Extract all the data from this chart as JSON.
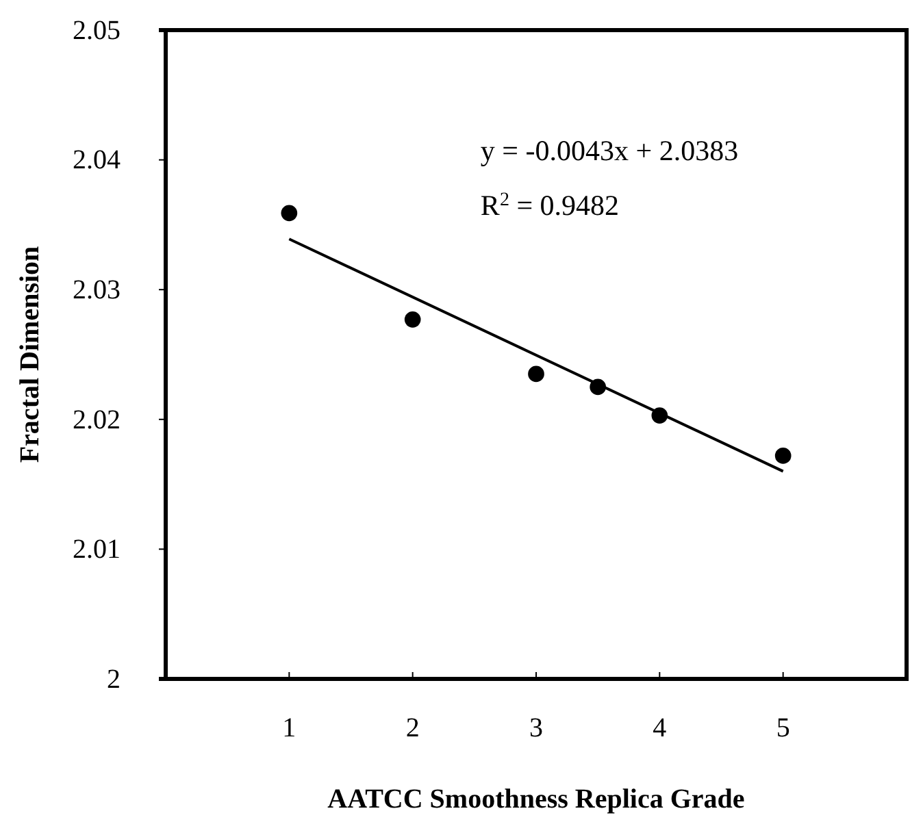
{
  "chart_data": {
    "type": "scatter",
    "xlabel": "AATCC Smoothness Replica Grade",
    "ylabel": "Fractal Dimension",
    "xlim": [
      0,
      6
    ],
    "xticks": [
      1,
      2,
      3,
      4,
      5
    ],
    "ylim": [
      2,
      2.05
    ],
    "yticks": [
      2,
      2.01,
      2.02,
      2.03,
      2.04,
      2.05
    ],
    "grid": false,
    "series": [
      {
        "marker": "circle",
        "color": "#000000",
        "x": [
          1,
          2,
          3,
          3.5,
          4,
          5
        ],
        "values": [
          2.0359,
          2.0277,
          2.0235,
          2.0225,
          2.0203,
          2.0172
        ]
      },
      {
        "type": "line",
        "color": "#000000",
        "line_style": "solid",
        "x": [
          1,
          5
        ],
        "values": [
          2.0339,
          2.016
        ]
      }
    ],
    "annotations": [
      "y = -0.0043x + 2.0383",
      "R$^{2}$ = 0.9482"
    ]
  }
}
